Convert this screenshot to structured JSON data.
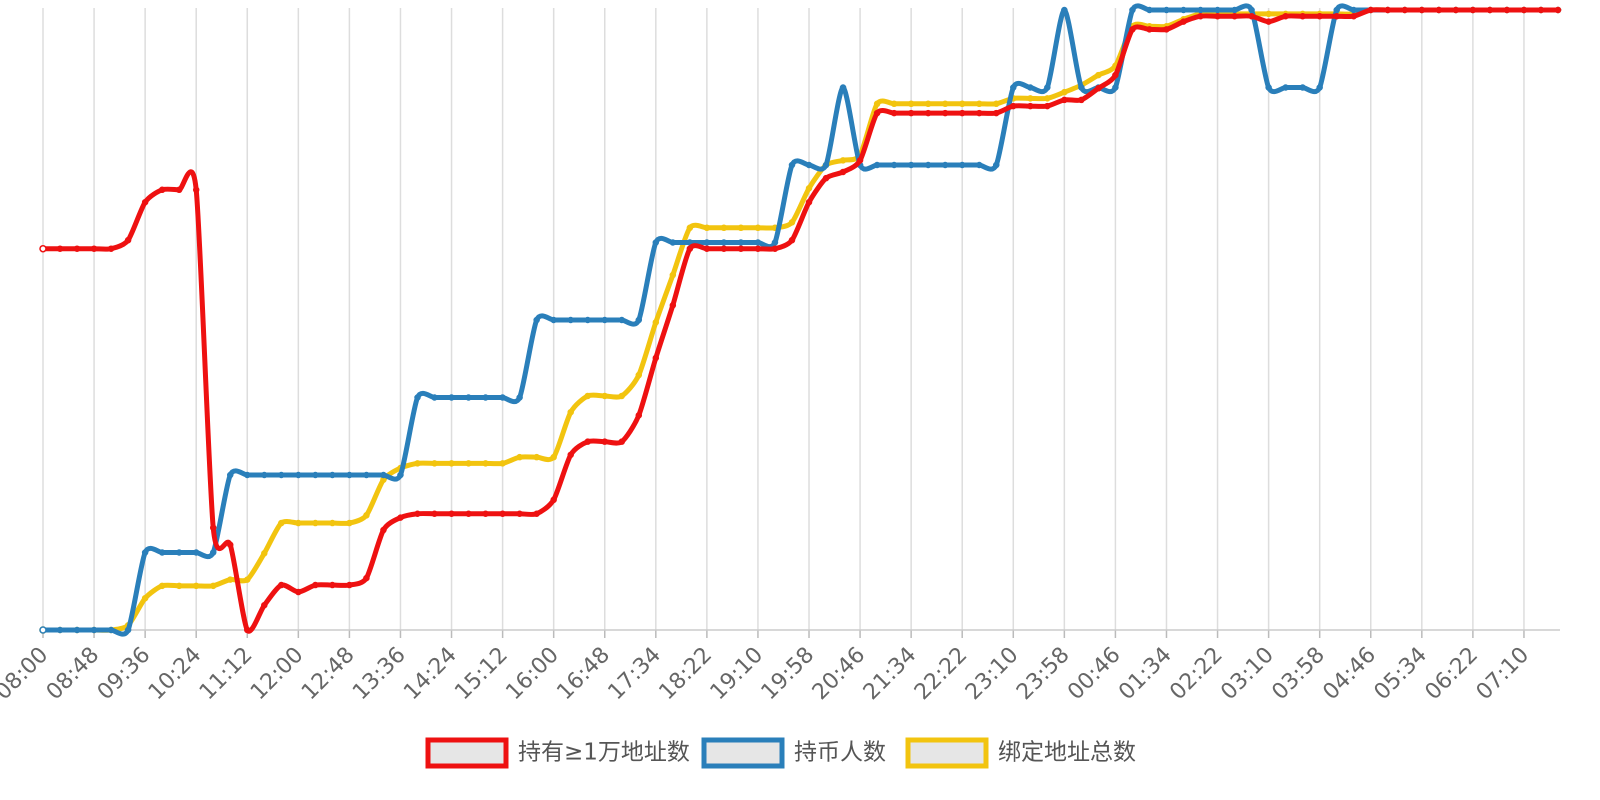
{
  "chart_data": {
    "type": "line",
    "categories": [
      "08:00",
      null,
      null,
      "08:48",
      null,
      null,
      "09:36",
      null,
      null,
      "10:24",
      null,
      null,
      "11:12",
      null,
      null,
      "12:00",
      null,
      null,
      "12:48",
      null,
      null,
      "13:36",
      null,
      null,
      "14:24",
      null,
      null,
      "15:12",
      null,
      null,
      "16:00",
      null,
      null,
      "16:48",
      null,
      null,
      "17:34",
      null,
      null,
      "18:22",
      null,
      null,
      "19:10",
      null,
      null,
      "19:58",
      null,
      null,
      "20:46",
      null,
      null,
      "21:34",
      null,
      null,
      "22:22",
      null,
      null,
      "23:10",
      null,
      null,
      "23:58",
      null,
      null,
      "00:46",
      null,
      null,
      "01:34",
      null,
      null,
      "02:22",
      null,
      null,
      "03:10",
      null,
      null,
      "03:58",
      null,
      null,
      "04:46",
      null,
      null,
      "05:34",
      null,
      null,
      "06:22",
      null,
      null,
      "07:10",
      null,
      null
    ],
    "ylim": [
      0,
      8
    ],
    "grid": true,
    "legend": "bottom",
    "series": [
      {
        "name": "持有≥1万地址数",
        "color": "#ee1111",
        "values": [
          4.92,
          4.92,
          4.92,
          4.92,
          4.92,
          5.03,
          5.52,
          5.68,
          5.68,
          5.68,
          1.32,
          1.1,
          0,
          0.32,
          0.58,
          0.49,
          0.58,
          0.58,
          0.58,
          0.67,
          1.29,
          1.45,
          1.5,
          1.5,
          1.5,
          1.5,
          1.5,
          1.5,
          1.5,
          1.5,
          1.68,
          2.26,
          2.43,
          2.43,
          2.43,
          2.77,
          3.51,
          4.19,
          4.92,
          4.92,
          4.92,
          4.92,
          4.92,
          4.92,
          5.03,
          5.52,
          5.83,
          5.91,
          6.06,
          6.67,
          6.67,
          6.67,
          6.67,
          6.67,
          6.67,
          6.67,
          6.67,
          6.76,
          6.76,
          6.76,
          6.84,
          6.84,
          6.99,
          7.16,
          7.75,
          7.75,
          7.75,
          7.85,
          7.92,
          7.92,
          7.92,
          7.92,
          7.85,
          7.92,
          7.92,
          7.92,
          7.92,
          7.92,
          8,
          8,
          8,
          8,
          8,
          8,
          8,
          8,
          8,
          8,
          8,
          8
        ]
      },
      {
        "name": "持币人数",
        "color": "#2a7fba",
        "values": [
          0,
          0,
          0,
          0,
          0,
          0,
          1,
          1,
          1,
          1,
          1,
          2,
          2,
          2,
          2,
          2,
          2,
          2,
          2,
          2,
          2,
          2,
          3,
          3,
          3,
          3,
          3,
          3,
          3,
          4,
          4,
          4,
          4,
          4,
          4,
          4,
          5,
          5,
          5,
          5,
          5,
          5,
          5,
          5,
          6,
          6,
          6,
          7,
          6,
          6,
          6,
          6,
          6,
          6,
          6,
          6,
          6,
          7,
          7,
          7,
          8,
          7,
          7,
          7,
          8,
          8,
          8,
          8,
          8,
          8,
          8,
          8,
          7,
          7,
          7,
          7,
          8,
          8,
          8,
          8,
          8,
          8,
          8,
          8,
          8,
          8,
          8,
          8,
          8,
          8
        ]
      },
      {
        "name": "绑定地址总数",
        "color": "#f2c40f",
        "values": [
          0,
          0,
          0,
          0,
          0,
          0.06,
          0.41,
          0.57,
          0.57,
          0.57,
          0.57,
          0.65,
          0.65,
          0.99,
          1.38,
          1.38,
          1.38,
          1.38,
          1.38,
          1.48,
          1.94,
          2.09,
          2.15,
          2.15,
          2.15,
          2.15,
          2.15,
          2.15,
          2.23,
          2.23,
          2.23,
          2.81,
          3.02,
          3.02,
          3.02,
          3.29,
          3.97,
          4.58,
          5.19,
          5.19,
          5.19,
          5.19,
          5.19,
          5.19,
          5.26,
          5.7,
          6,
          6.06,
          6.13,
          6.79,
          6.79,
          6.79,
          6.79,
          6.79,
          6.79,
          6.79,
          6.79,
          6.86,
          6.86,
          6.86,
          6.94,
          7.03,
          7.16,
          7.28,
          7.79,
          7.79,
          7.79,
          7.88,
          7.95,
          7.95,
          7.95,
          7.95,
          7.95,
          7.95,
          7.95,
          7.95,
          7.95,
          7.95,
          8,
          8,
          8,
          8,
          8,
          8,
          8,
          8,
          8,
          8,
          8,
          8
        ]
      }
    ]
  }
}
